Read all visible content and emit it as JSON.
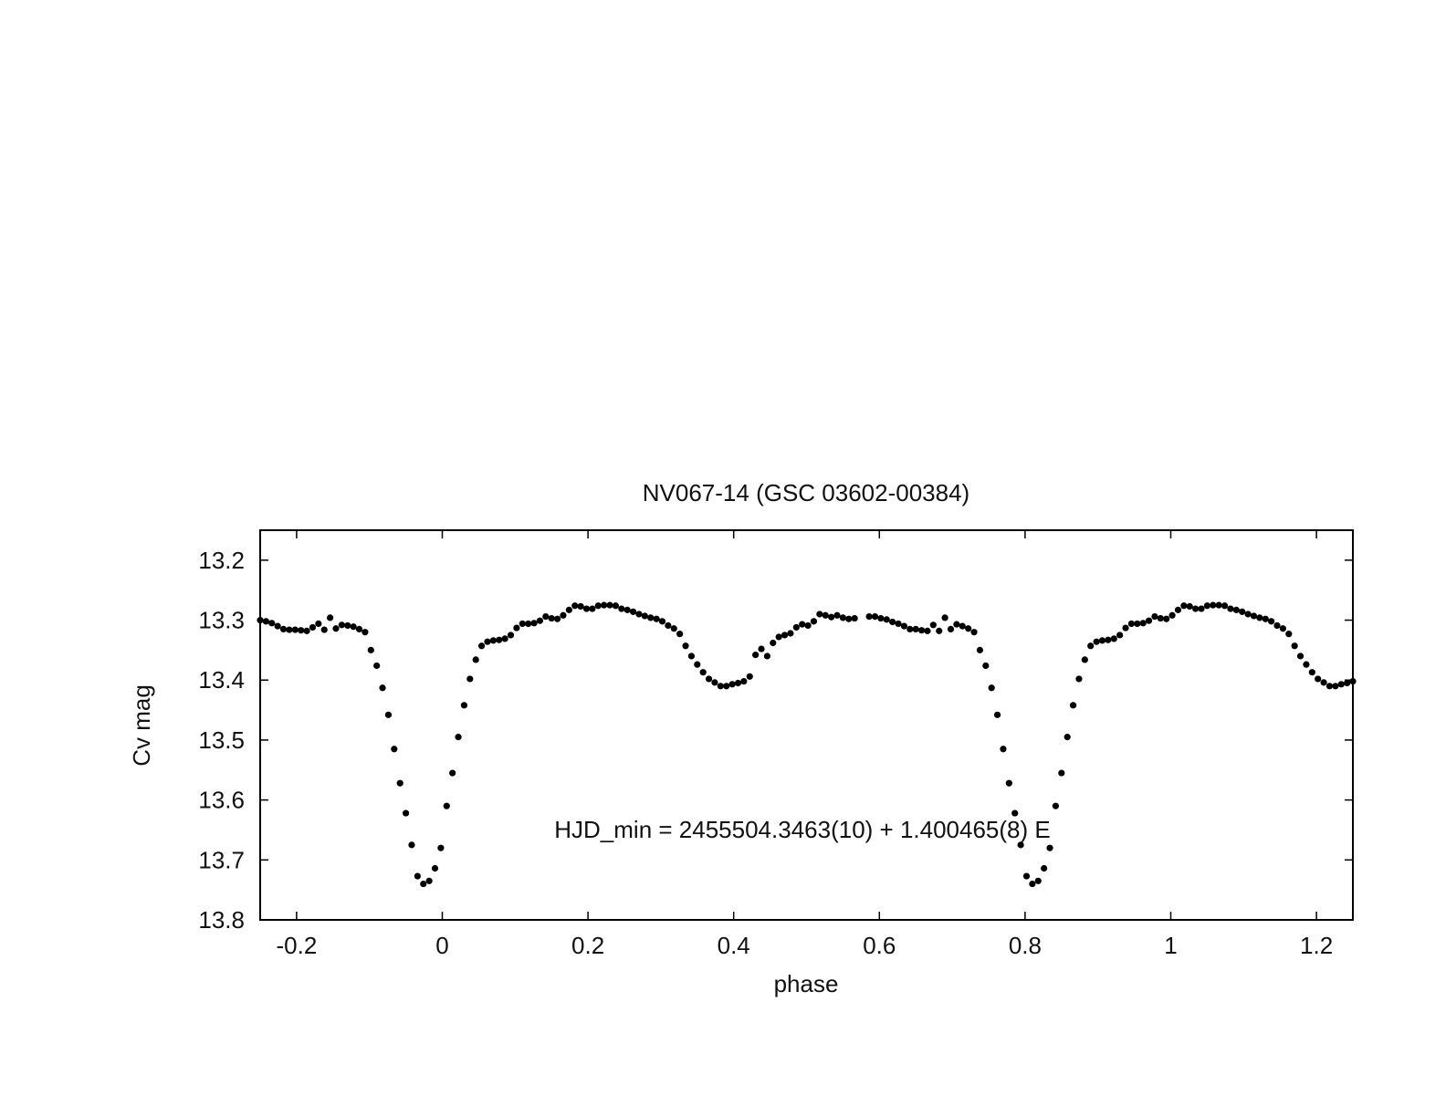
{
  "chart_data": {
    "type": "scatter",
    "title": "NV067-14 (GSC 03602-00384)",
    "xlabel": "phase",
    "ylabel": "Cv mag",
    "xlim": [
      -0.25,
      1.25
    ],
    "ylim": [
      13.15,
      13.8
    ],
    "y_inverted": true,
    "grid": false,
    "x_ticks": [
      -0.2,
      0,
      0.2,
      0.4,
      0.6,
      0.8,
      1,
      1.2
    ],
    "x_tick_labels": [
      "-0.2",
      "0",
      "0.2",
      "0.4",
      "0.6",
      "0.8",
      "1",
      "1.2"
    ],
    "y_ticks": [
      13.2,
      13.3,
      13.4,
      13.5,
      13.6,
      13.7,
      13.8
    ],
    "y_tick_labels": [
      "13.2",
      "13.3",
      "13.4",
      "13.5",
      "13.6",
      "13.7",
      "13.8"
    ],
    "annotation": "HJD_min = 2455504.3463(10) + 1.400465(8) E",
    "marker_color": "#000000",
    "series": [
      {
        "points": [
          [
            -0.25,
            13.3
          ],
          [
            -0.242,
            13.302
          ],
          [
            -0.234,
            13.305
          ],
          [
            -0.226,
            13.31
          ],
          [
            -0.218,
            13.315
          ],
          [
            -0.21,
            13.316
          ],
          [
            -0.202,
            13.316
          ],
          [
            -0.194,
            13.317
          ],
          [
            -0.186,
            13.318
          ],
          [
            -0.178,
            13.312
          ],
          [
            -0.17,
            13.306
          ],
          [
            -0.162,
            13.316
          ],
          [
            -0.154,
            13.296
          ],
          [
            -0.146,
            13.314
          ],
          [
            -0.138,
            13.308
          ],
          [
            -0.13,
            13.309
          ],
          [
            -0.122,
            13.311
          ],
          [
            -0.114,
            13.315
          ],
          [
            -0.106,
            13.32
          ],
          [
            -0.098,
            13.35
          ],
          [
            -0.09,
            13.376
          ],
          [
            -0.082,
            13.413
          ],
          [
            -0.074,
            13.458
          ],
          [
            -0.066,
            13.515
          ],
          [
            -0.058,
            13.572
          ],
          [
            -0.05,
            13.622
          ],
          [
            -0.042,
            13.675
          ],
          [
            -0.034,
            13.727
          ],
          [
            -0.026,
            13.74
          ],
          [
            -0.018,
            13.735
          ],
          [
            -0.01,
            13.714
          ],
          [
            -0.002,
            13.68
          ],
          [
            0.006,
            13.61
          ],
          [
            0.014,
            13.555
          ],
          [
            0.022,
            13.495
          ],
          [
            0.03,
            13.442
          ],
          [
            0.038,
            13.398
          ],
          [
            0.046,
            13.366
          ],
          [
            0.054,
            13.343
          ],
          [
            0.062,
            13.336
          ],
          [
            0.07,
            13.334
          ],
          [
            0.078,
            13.333
          ],
          [
            0.086,
            13.331
          ],
          [
            0.094,
            13.325
          ],
          [
            0.102,
            13.313
          ],
          [
            0.11,
            13.306
          ],
          [
            0.118,
            13.306
          ],
          [
            0.126,
            13.305
          ],
          [
            0.134,
            13.301
          ],
          [
            0.142,
            13.294
          ],
          [
            0.15,
            13.297
          ],
          [
            0.158,
            13.298
          ],
          [
            0.166,
            13.292
          ],
          [
            0.174,
            13.283
          ],
          [
            0.182,
            13.276
          ],
          [
            0.19,
            13.277
          ],
          [
            0.198,
            13.281
          ],
          [
            0.206,
            13.281
          ],
          [
            0.214,
            13.276
          ],
          [
            0.222,
            13.275
          ],
          [
            0.23,
            13.275
          ],
          [
            0.238,
            13.276
          ],
          [
            0.246,
            13.281
          ],
          [
            0.254,
            13.283
          ],
          [
            0.262,
            13.286
          ],
          [
            0.27,
            13.29
          ],
          [
            0.278,
            13.293
          ],
          [
            0.286,
            13.296
          ],
          [
            0.294,
            13.298
          ],
          [
            0.302,
            13.302
          ],
          [
            0.31,
            13.309
          ],
          [
            0.318,
            13.314
          ],
          [
            0.326,
            13.323
          ],
          [
            0.334,
            13.343
          ],
          [
            0.342,
            13.36
          ],
          [
            0.35,
            13.374
          ],
          [
            0.358,
            13.387
          ],
          [
            0.366,
            13.398
          ],
          [
            0.374,
            13.404
          ],
          [
            0.382,
            13.41
          ],
          [
            0.39,
            13.41
          ],
          [
            0.398,
            13.407
          ],
          [
            0.406,
            13.405
          ],
          [
            0.414,
            13.402
          ],
          [
            0.422,
            13.394
          ],
          [
            0.43,
            13.358
          ],
          [
            0.438,
            13.348
          ],
          [
            0.446,
            13.36
          ],
          [
            0.454,
            13.338
          ],
          [
            0.462,
            13.328
          ],
          [
            0.47,
            13.325
          ],
          [
            0.478,
            13.322
          ],
          [
            0.486,
            13.312
          ],
          [
            0.494,
            13.307
          ],
          [
            0.502,
            13.309
          ],
          [
            0.51,
            13.302
          ],
          [
            0.518,
            13.29
          ],
          [
            0.526,
            13.292
          ],
          [
            0.534,
            13.295
          ],
          [
            0.542,
            13.292
          ],
          [
            0.55,
            13.296
          ],
          [
            0.558,
            13.298
          ],
          [
            0.566,
            13.297
          ],
          [
            0.586,
            13.294
          ],
          [
            0.594,
            13.294
          ],
          [
            0.602,
            13.297
          ],
          [
            0.61,
            13.299
          ],
          [
            0.618,
            13.303
          ],
          [
            0.626,
            13.306
          ],
          [
            0.634,
            13.31
          ],
          [
            0.642,
            13.315
          ],
          [
            0.65,
            13.315
          ],
          [
            0.658,
            13.317
          ],
          [
            0.666,
            13.318
          ],
          [
            0.674,
            13.308
          ],
          [
            0.682,
            13.318
          ],
          [
            0.69,
            13.296
          ],
          [
            0.698,
            13.315
          ],
          [
            0.706,
            13.307
          ],
          [
            0.714,
            13.31
          ],
          [
            0.722,
            13.314
          ],
          [
            0.73,
            13.32
          ],
          [
            0.738,
            13.35
          ],
          [
            0.746,
            13.376
          ],
          [
            0.754,
            13.413
          ],
          [
            0.762,
            13.458
          ],
          [
            0.77,
            13.515
          ],
          [
            0.778,
            13.572
          ],
          [
            0.786,
            13.622
          ],
          [
            0.794,
            13.675
          ],
          [
            0.802,
            13.727
          ],
          [
            0.81,
            13.74
          ],
          [
            0.818,
            13.735
          ],
          [
            0.826,
            13.714
          ],
          [
            0.834,
            13.68
          ],
          [
            0.842,
            13.61
          ],
          [
            0.85,
            13.555
          ],
          [
            0.858,
            13.495
          ],
          [
            0.866,
            13.442
          ],
          [
            0.874,
            13.398
          ],
          [
            0.882,
            13.366
          ],
          [
            0.89,
            13.343
          ],
          [
            0.898,
            13.336
          ],
          [
            0.906,
            13.334
          ],
          [
            0.914,
            13.333
          ],
          [
            0.922,
            13.331
          ],
          [
            0.93,
            13.325
          ],
          [
            0.938,
            13.313
          ],
          [
            0.946,
            13.306
          ],
          [
            0.954,
            13.306
          ],
          [
            0.962,
            13.305
          ],
          [
            0.97,
            13.301
          ],
          [
            0.978,
            13.294
          ],
          [
            0.986,
            13.297
          ],
          [
            0.994,
            13.298
          ],
          [
            1.002,
            13.292
          ],
          [
            1.01,
            13.283
          ],
          [
            1.018,
            13.276
          ],
          [
            1.026,
            13.277
          ],
          [
            1.034,
            13.281
          ],
          [
            1.042,
            13.281
          ],
          [
            1.05,
            13.276
          ],
          [
            1.058,
            13.275
          ],
          [
            1.066,
            13.275
          ],
          [
            1.074,
            13.276
          ],
          [
            1.082,
            13.281
          ],
          [
            1.09,
            13.283
          ],
          [
            1.098,
            13.286
          ],
          [
            1.106,
            13.29
          ],
          [
            1.114,
            13.293
          ],
          [
            1.122,
            13.296
          ],
          [
            1.13,
            13.298
          ],
          [
            1.138,
            13.302
          ],
          [
            1.146,
            13.309
          ],
          [
            1.154,
            13.314
          ],
          [
            1.162,
            13.323
          ],
          [
            1.17,
            13.343
          ],
          [
            1.178,
            13.36
          ],
          [
            1.186,
            13.374
          ],
          [
            1.194,
            13.387
          ],
          [
            1.202,
            13.398
          ],
          [
            1.21,
            13.404
          ],
          [
            1.218,
            13.41
          ],
          [
            1.226,
            13.41
          ],
          [
            1.234,
            13.407
          ],
          [
            1.242,
            13.405
          ],
          [
            1.25,
            13.402
          ]
        ]
      }
    ]
  }
}
